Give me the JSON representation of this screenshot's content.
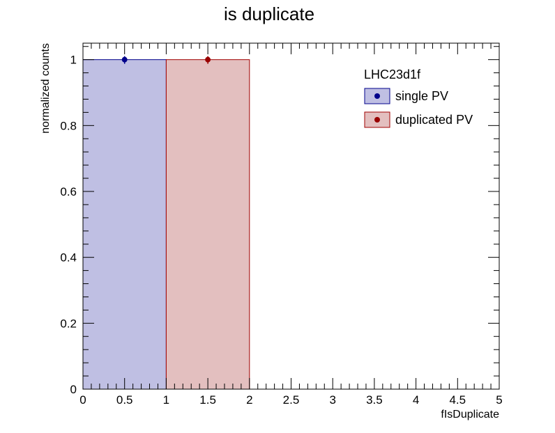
{
  "chart_data": {
    "type": "bar",
    "title": "is duplicate",
    "xlabel": "fIsDuplicate",
    "ylabel": "normalized counts",
    "xlim": [
      0,
      5
    ],
    "ylim": [
      0,
      1.05
    ],
    "x_ticks": [
      "0",
      "0.5",
      "1",
      "1.5",
      "2",
      "2.5",
      "3",
      "3.5",
      "4",
      "4.5",
      "5"
    ],
    "y_ticks": [
      "0",
      "0.2",
      "0.4",
      "0.6",
      "0.8",
      "1"
    ],
    "legend": {
      "header": "LHC23d1f",
      "placement": "top-right"
    },
    "series": [
      {
        "name": "single PV",
        "bins": [
          [
            0,
            1
          ]
        ],
        "values": [
          1.0
        ],
        "point_x": [
          0.5
        ],
        "line_color": "#00008b",
        "fill_color": "#bfbfe3",
        "marker_color": "#00008b"
      },
      {
        "name": "duplicated PV",
        "bins": [
          [
            1,
            2
          ]
        ],
        "values": [
          1.0
        ],
        "point_x": [
          1.5
        ],
        "line_color": "#a00000",
        "fill_color": "#e3bfbf",
        "marker_color": "#990000"
      }
    ]
  }
}
